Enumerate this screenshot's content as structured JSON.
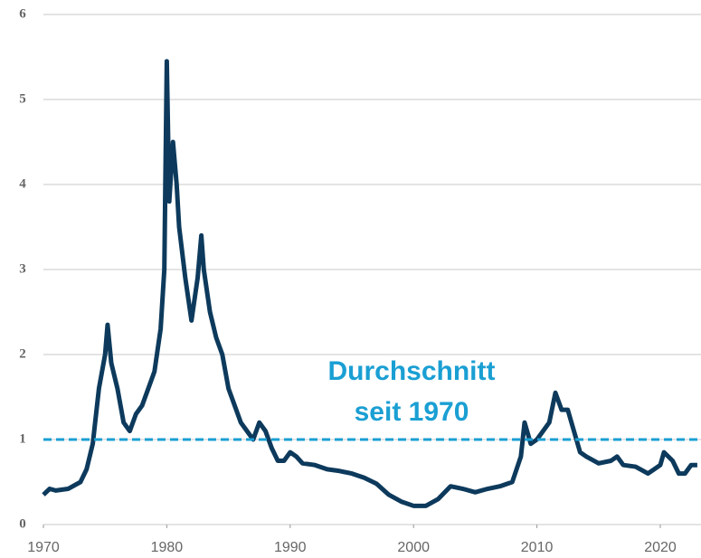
{
  "chart_data": {
    "type": "line",
    "x": [
      1970,
      1970.5,
      1971,
      1972,
      1973,
      1973.5,
      1974,
      1974.5,
      1975,
      1975.2,
      1975.5,
      1976,
      1976.5,
      1977,
      1977.5,
      1978,
      1978.5,
      1979,
      1979.5,
      1979.8,
      1980,
      1980.2,
      1980.5,
      1980.8,
      1981,
      1981.5,
      1982,
      1982.5,
      1982.8,
      1983,
      1983.5,
      1984,
      1984.5,
      1985,
      1985.5,
      1986,
      1986.5,
      1987,
      1987.5,
      1988,
      1988.5,
      1989,
      1989.5,
      1990,
      1990.5,
      1991,
      1992,
      1993,
      1994,
      1995,
      1996,
      1997,
      1998,
      1999,
      2000,
      2001,
      2002,
      2003,
      2004,
      2005,
      2006,
      2007,
      2008,
      2008.7,
      2009,
      2009.5,
      2010,
      2010.5,
      2011,
      2011.5,
      2012,
      2012.5,
      2013,
      2013.5,
      2014,
      2015,
      2016,
      2016.5,
      2017,
      2018,
      2019,
      2019.5,
      2020,
      2020.3,
      2021,
      2021.5,
      2022,
      2022.5,
      2023
    ],
    "series": [
      {
        "color": "#0d3a5c",
        "values": [
          0.35,
          0.42,
          0.4,
          0.42,
          0.5,
          0.65,
          0.95,
          1.6,
          2.0,
          2.35,
          1.9,
          1.6,
          1.2,
          1.1,
          1.3,
          1.4,
          1.6,
          1.8,
          2.3,
          3.0,
          5.45,
          3.8,
          4.5,
          4.0,
          3.5,
          2.9,
          2.4,
          2.9,
          3.4,
          3.0,
          2.5,
          2.2,
          2.0,
          1.6,
          1.4,
          1.2,
          1.1,
          1.0,
          1.2,
          1.1,
          0.9,
          0.75,
          0.75,
          0.85,
          0.8,
          0.72,
          0.7,
          0.65,
          0.63,
          0.6,
          0.55,
          0.48,
          0.35,
          0.27,
          0.22,
          0.22,
          0.3,
          0.45,
          0.42,
          0.38,
          0.42,
          0.45,
          0.5,
          0.8,
          1.2,
          0.95,
          1.0,
          1.1,
          1.2,
          1.55,
          1.35,
          1.35,
          1.1,
          0.85,
          0.8,
          0.72,
          0.75,
          0.8,
          0.7,
          0.68,
          0.6,
          0.65,
          0.7,
          0.85,
          0.75,
          0.6,
          0.6,
          0.7,
          0.7
        ]
      }
    ],
    "xlim": [
      1970,
      2023.3
    ],
    "ylim": [
      0,
      6
    ],
    "xticks": [
      1970,
      1980,
      1990,
      2000,
      2010,
      2020
    ],
    "yticks": [
      0,
      1,
      2,
      3,
      4,
      5,
      6
    ],
    "grid": true,
    "reference_line": {
      "value": 1,
      "color": "#1a9fd3"
    },
    "annotation": [
      "Durchschnitt",
      "seit 1970"
    ]
  }
}
